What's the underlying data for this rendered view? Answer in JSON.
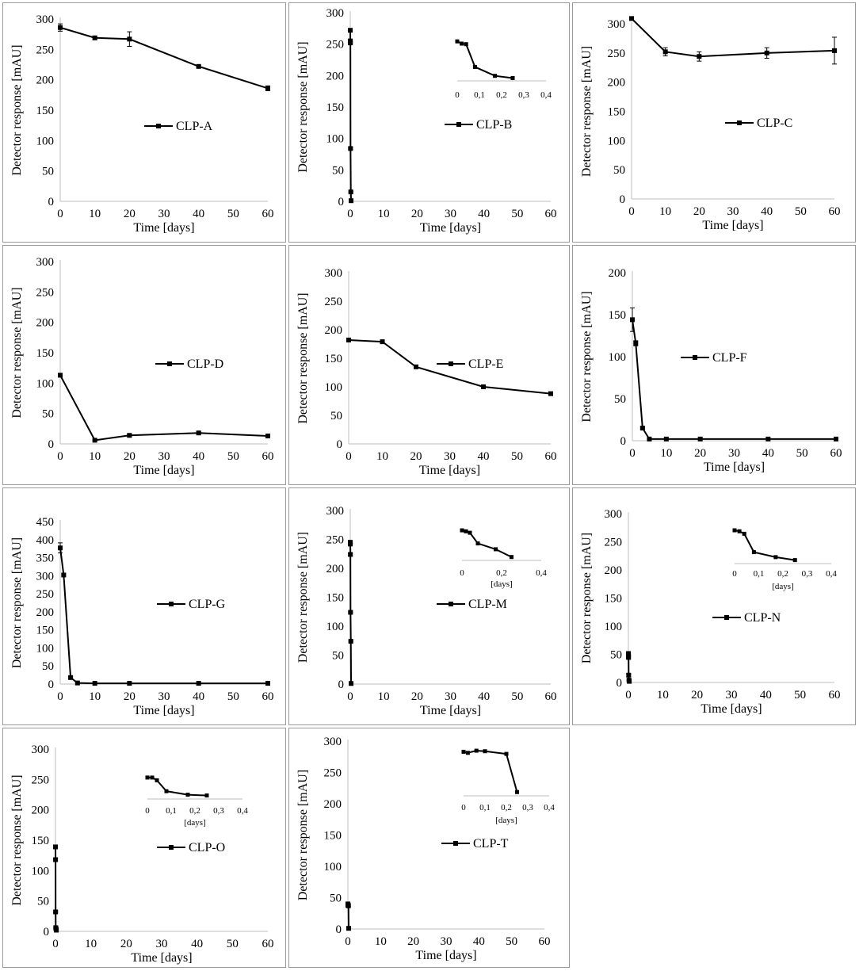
{
  "chart_data": [
    {
      "type": "line",
      "legend": "CLP-A",
      "legend_placement": "middle-right",
      "xlabel": "Time [days]",
      "ylabel": "Detector response [mAU]",
      "xlim": [
        0,
        60
      ],
      "ylim": [
        0,
        300
      ],
      "xticks": [
        0,
        10,
        20,
        30,
        40,
        50,
        60
      ],
      "yticks": [
        0,
        50,
        100,
        150,
        200,
        250,
        300
      ],
      "x": [
        0,
        10,
        20,
        40,
        60
      ],
      "y": [
        286,
        269,
        267,
        222,
        186
      ],
      "err": [
        6,
        3,
        12,
        2,
        4
      ]
    },
    {
      "type": "line",
      "legend": "CLP-B",
      "legend_placement": "middle-right",
      "xlabel": "Time [days]",
      "ylabel": "Detector response [mAU]",
      "xlim": [
        0,
        60
      ],
      "ylim": [
        0,
        300
      ],
      "xticks": [
        0,
        10,
        20,
        30,
        40,
        50,
        60
      ],
      "yticks": [
        0,
        50,
        100,
        150,
        200,
        250,
        300
      ],
      "x": [
        0.01,
        0.02,
        0.04,
        0.08,
        0.17,
        0.25
      ],
      "y": [
        272,
        255,
        252,
        84,
        15,
        1
      ],
      "err": [
        2,
        3,
        2,
        1,
        1,
        0
      ],
      "inset": {
        "xlim": [
          0,
          0.4
        ],
        "xticks": [
          "0",
          "0,1",
          "0,2",
          "0,3",
          "0,4"
        ],
        "xlabel": "",
        "x": [
          0,
          0.02,
          0.04,
          0.08,
          0.17,
          0.25
        ],
        "y": [
          256,
          252,
          251,
          210,
          194,
          190
        ]
      }
    },
    {
      "type": "line",
      "legend": "CLP-C",
      "legend_placement": "middle-right",
      "xlabel": "Time [days]",
      "ylabel": "Detector response [mAU]",
      "xlim": [
        0,
        60
      ],
      "ylim": [
        0,
        300
      ],
      "xticks": [
        0,
        10,
        20,
        30,
        40,
        50,
        60
      ],
      "yticks": [
        0,
        50,
        100,
        150,
        200,
        250,
        300
      ],
      "x": [
        0,
        10,
        20,
        40,
        60
      ],
      "y": [
        309,
        252,
        244,
        250,
        254
      ],
      "err": [
        3,
        7,
        8,
        9,
        23
      ]
    },
    {
      "type": "line",
      "legend": "CLP-D",
      "legend_placement": "middle-right",
      "xlabel": "Time [days]",
      "ylabel": "Detector response [mAU]",
      "xlim": [
        0,
        60
      ],
      "ylim": [
        0,
        300
      ],
      "xticks": [
        0,
        10,
        20,
        30,
        40,
        50,
        60
      ],
      "yticks": [
        0,
        50,
        100,
        150,
        200,
        250,
        300
      ],
      "x": [
        0,
        10,
        20,
        40,
        60
      ],
      "y": [
        113,
        6,
        14,
        18,
        13
      ],
      "err": [
        2,
        1,
        2,
        2,
        2
      ]
    },
    {
      "type": "line",
      "legend": "CLP-E",
      "legend_placement": "middle-right",
      "xlabel": "Time [days]",
      "ylabel": "Detector response [mAU]",
      "xlim": [
        0,
        60
      ],
      "ylim": [
        0,
        300
      ],
      "xticks": [
        0,
        10,
        20,
        30,
        40,
        50,
        60
      ],
      "yticks": [
        0,
        50,
        100,
        150,
        200,
        250,
        300
      ],
      "x": [
        0,
        10,
        20,
        40,
        60
      ],
      "y": [
        182,
        179,
        135,
        100,
        88
      ],
      "err": [
        1,
        2,
        2,
        1,
        1
      ]
    },
    {
      "type": "line",
      "legend": "CLP-F",
      "legend_placement": "middle-right",
      "xlabel": "Time [days]",
      "ylabel": "Detector response [mAU]",
      "xlim": [
        0,
        60
      ],
      "ylim": [
        0,
        200
      ],
      "xticks": [
        0,
        10,
        20,
        30,
        40,
        50,
        60
      ],
      "yticks": [
        0,
        50,
        100,
        150,
        200
      ],
      "x": [
        0,
        1,
        3,
        5,
        10,
        20,
        40,
        60
      ],
      "y": [
        144,
        116,
        15,
        2,
        2,
        2,
        2,
        2
      ],
      "err": [
        14,
        3,
        1,
        0,
        0,
        0,
        0,
        0
      ]
    },
    {
      "type": "line",
      "legend": "CLP-G",
      "legend_placement": "middle-right",
      "xlabel": "Time [days]",
      "ylabel": "Detector response [mAU]",
      "xlim": [
        0,
        60
      ],
      "ylim": [
        0,
        450
      ],
      "xticks": [
        0,
        10,
        20,
        30,
        40,
        50,
        60
      ],
      "yticks": [
        0,
        50,
        100,
        150,
        200,
        250,
        300,
        350,
        400,
        450
      ],
      "x": [
        0,
        1,
        3,
        5,
        10,
        20,
        40,
        60
      ],
      "y": [
        377,
        302,
        18,
        3,
        2,
        2,
        2,
        2
      ],
      "err": [
        14,
        3,
        3,
        0,
        0,
        0,
        0,
        0
      ]
    },
    {
      "type": "line",
      "legend": "CLP-M",
      "legend_placement": "middle-right",
      "xlabel": "Time [days]",
      "ylabel": "Detector response [mAU]",
      "xlim": [
        0,
        60
      ],
      "ylim": [
        0,
        300
      ],
      "xticks": [
        0,
        10,
        20,
        30,
        40,
        50,
        60
      ],
      "yticks": [
        0,
        50,
        100,
        150,
        200,
        250,
        300
      ],
      "x": [
        0.01,
        0.02,
        0.04,
        0.08,
        0.17,
        0.25
      ],
      "y": [
        245,
        242,
        224,
        124,
        74,
        1
      ],
      "err": [
        2,
        2,
        2,
        1,
        1,
        0
      ],
      "inset": {
        "xlim": [
          0,
          0.4
        ],
        "xticks": [
          "0",
          "0,2",
          "0,4"
        ],
        "xlabel": "[days]",
        "x": [
          0,
          0.02,
          0.04,
          0.08,
          0.17,
          0.25
        ],
        "y": [
          267,
          265,
          262,
          240,
          228,
          212
        ]
      }
    },
    {
      "type": "line",
      "legend": "CLP-N",
      "legend_placement": "middle-right",
      "xlabel": "Time [days]",
      "ylabel": "Detector response [mAU]",
      "xlim": [
        0,
        60
      ],
      "ylim": [
        0,
        300
      ],
      "xticks": [
        0,
        10,
        20,
        30,
        40,
        50,
        60
      ],
      "yticks": [
        0,
        50,
        100,
        150,
        200,
        250,
        300
      ],
      "x": [
        0.01,
        0.02,
        0.04,
        0.08,
        0.17,
        0.25
      ],
      "y": [
        50,
        48,
        45,
        13,
        4,
        2
      ],
      "err": [
        5,
        5,
        4,
        2,
        1,
        0
      ],
      "inset": {
        "xlim": [
          0,
          0.4
        ],
        "xticks": [
          "0",
          "0,1",
          "0,2",
          "0,3",
          "0,4"
        ],
        "xlabel": "[days]",
        "x": [
          0,
          0.02,
          0.04,
          0.08,
          0.17,
          0.25
        ],
        "y": [
          272,
          270,
          265,
          228,
          218,
          212
        ]
      }
    },
    {
      "type": "line",
      "legend": "CLP-O",
      "legend_placement": "middle-right",
      "xlabel": "Time [days]",
      "ylabel": "Detector response [mAU]",
      "xlim": [
        0,
        60
      ],
      "ylim": [
        0,
        300
      ],
      "xticks": [
        0,
        10,
        20,
        30,
        40,
        50,
        60
      ],
      "yticks": [
        0,
        50,
        100,
        150,
        200,
        250,
        300
      ],
      "x": [
        0.01,
        0.02,
        0.04,
        0.08,
        0.17,
        0.25
      ],
      "y": [
        139,
        118,
        32,
        6,
        4,
        2
      ],
      "err": [
        2,
        2,
        1,
        1,
        0,
        0
      ],
      "inset": {
        "xlim": [
          0,
          0.4
        ],
        "xticks": [
          "0",
          "0,1",
          "0,2",
          "0,3",
          "0,4"
        ],
        "xlabel": "[days]",
        "x": [
          0,
          0.02,
          0.04,
          0.08,
          0.17,
          0.25
        ],
        "y": [
          260,
          260,
          253,
          225,
          216,
          214
        ]
      }
    },
    {
      "type": "line",
      "legend": "CLP-T",
      "legend_placement": "middle-right",
      "xlabel": "Time [days]",
      "ylabel": "Detector response [mAU]",
      "xlim": [
        0,
        60
      ],
      "ylim": [
        0,
        300
      ],
      "xticks": [
        0,
        10,
        20,
        30,
        40,
        50,
        60
      ],
      "yticks": [
        0,
        50,
        100,
        150,
        200,
        250,
        300
      ],
      "x": [
        0.01,
        0.02,
        0.04,
        0.08,
        0.17,
        0.25
      ],
      "y": [
        40,
        39,
        38,
        38,
        37,
        1
      ],
      "err": [
        2,
        2,
        1,
        1,
        1,
        0
      ],
      "inset": {
        "xlim": [
          0,
          0.4
        ],
        "xticks": [
          "0",
          "0,1",
          "0,2",
          "0,3",
          "0,4"
        ],
        "xlabel": "[days]",
        "x": [
          0,
          0.02,
          0.06,
          0.1,
          0.2,
          0.25
        ],
        "y": [
          287,
          285,
          289,
          288,
          283,
          212
        ]
      }
    }
  ]
}
